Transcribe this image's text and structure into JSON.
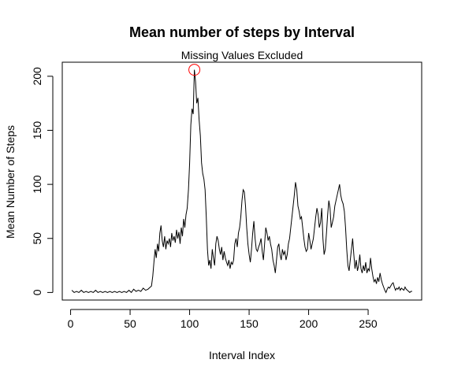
{
  "chart_data": {
    "type": "line",
    "title": "Mean number of steps by Interval",
    "subtitle": "Missing Values Excluded",
    "xlabel": "Interval Index",
    "ylabel": "Mean Number of Steps",
    "xlim": [
      -7,
      295
    ],
    "ylim": [
      -7,
      213
    ],
    "xticks": [
      0,
      50,
      100,
      150,
      200,
      250
    ],
    "yticks": [
      0,
      50,
      100,
      150,
      200
    ],
    "grid": false,
    "line_color": "#000000",
    "highlight": {
      "x": 104,
      "y": 206,
      "color": "#ff0000"
    },
    "points": [
      [
        1,
        2
      ],
      [
        3,
        0
      ],
      [
        5,
        1
      ],
      [
        7,
        0
      ],
      [
        9,
        2
      ],
      [
        11,
        0
      ],
      [
        13,
        1
      ],
      [
        15,
        0
      ],
      [
        17,
        1
      ],
      [
        19,
        0
      ],
      [
        21,
        2
      ],
      [
        23,
        0
      ],
      [
        25,
        1
      ],
      [
        27,
        0
      ],
      [
        29,
        1
      ],
      [
        31,
        0
      ],
      [
        33,
        1
      ],
      [
        35,
        0
      ],
      [
        37,
        1
      ],
      [
        39,
        0
      ],
      [
        41,
        1
      ],
      [
        43,
        0
      ],
      [
        45,
        1
      ],
      [
        47,
        0
      ],
      [
        49,
        2
      ],
      [
        51,
        0
      ],
      [
        53,
        3
      ],
      [
        55,
        1
      ],
      [
        57,
        2
      ],
      [
        59,
        1
      ],
      [
        61,
        4
      ],
      [
        63,
        2
      ],
      [
        65,
        3
      ],
      [
        67,
        5
      ],
      [
        68,
        6
      ],
      [
        69,
        15
      ],
      [
        70,
        28
      ],
      [
        71,
        40
      ],
      [
        72,
        32
      ],
      [
        73,
        45
      ],
      [
        74,
        38
      ],
      [
        75,
        55
      ],
      [
        76,
        62
      ],
      [
        77,
        48
      ],
      [
        78,
        42
      ],
      [
        79,
        52
      ],
      [
        80,
        40
      ],
      [
        81,
        48
      ],
      [
        82,
        45
      ],
      [
        83,
        50
      ],
      [
        84,
        42
      ],
      [
        85,
        55
      ],
      [
        86,
        48
      ],
      [
        87,
        52
      ],
      [
        88,
        46
      ],
      [
        89,
        58
      ],
      [
        90,
        50
      ],
      [
        91,
        56
      ],
      [
        92,
        45
      ],
      [
        93,
        60
      ],
      [
        94,
        52
      ],
      [
        95,
        68
      ],
      [
        96,
        60
      ],
      [
        97,
        72
      ],
      [
        98,
        78
      ],
      [
        99,
        95
      ],
      [
        100,
        120
      ],
      [
        101,
        155
      ],
      [
        102,
        170
      ],
      [
        103,
        165
      ],
      [
        104,
        206
      ],
      [
        105,
        195
      ],
      [
        106,
        175
      ],
      [
        107,
        180
      ],
      [
        108,
        160
      ],
      [
        109,
        145
      ],
      [
        110,
        120
      ],
      [
        111,
        110
      ],
      [
        112,
        105
      ],
      [
        113,
        95
      ],
      [
        114,
        70
      ],
      [
        115,
        40
      ],
      [
        116,
        25
      ],
      [
        117,
        30
      ],
      [
        118,
        22
      ],
      [
        119,
        40
      ],
      [
        120,
        32
      ],
      [
        121,
        25
      ],
      [
        122,
        45
      ],
      [
        123,
        52
      ],
      [
        124,
        48
      ],
      [
        125,
        40
      ],
      [
        126,
        35
      ],
      [
        127,
        42
      ],
      [
        128,
        30
      ],
      [
        129,
        38
      ],
      [
        130,
        32
      ],
      [
        131,
        28
      ],
      [
        132,
        25
      ],
      [
        133,
        30
      ],
      [
        134,
        22
      ],
      [
        135,
        28
      ],
      [
        136,
        26
      ],
      [
        137,
        30
      ],
      [
        138,
        45
      ],
      [
        139,
        50
      ],
      [
        140,
        42
      ],
      [
        141,
        55
      ],
      [
        142,
        60
      ],
      [
        143,
        70
      ],
      [
        144,
        85
      ],
      [
        145,
        95
      ],
      [
        146,
        93
      ],
      [
        147,
        80
      ],
      [
        148,
        60
      ],
      [
        149,
        45
      ],
      [
        150,
        35
      ],
      [
        151,
        28
      ],
      [
        152,
        40
      ],
      [
        153,
        55
      ],
      [
        154,
        66
      ],
      [
        155,
        50
      ],
      [
        156,
        40
      ],
      [
        157,
        38
      ],
      [
        158,
        42
      ],
      [
        159,
        45
      ],
      [
        160,
        50
      ],
      [
        161,
        38
      ],
      [
        162,
        30
      ],
      [
        163,
        45
      ],
      [
        164,
        60
      ],
      [
        165,
        55
      ],
      [
        166,
        48
      ],
      [
        167,
        52
      ],
      [
        168,
        45
      ],
      [
        169,
        40
      ],
      [
        170,
        30
      ],
      [
        171,
        25
      ],
      [
        172,
        18
      ],
      [
        173,
        30
      ],
      [
        174,
        42
      ],
      [
        175,
        45
      ],
      [
        176,
        35
      ],
      [
        177,
        30
      ],
      [
        178,
        40
      ],
      [
        179,
        35
      ],
      [
        180,
        38
      ],
      [
        181,
        30
      ],
      [
        182,
        35
      ],
      [
        183,
        45
      ],
      [
        184,
        50
      ],
      [
        185,
        60
      ],
      [
        186,
        70
      ],
      [
        187,
        80
      ],
      [
        188,
        90
      ],
      [
        189,
        102
      ],
      [
        190,
        95
      ],
      [
        191,
        80
      ],
      [
        192,
        75
      ],
      [
        193,
        68
      ],
      [
        194,
        70
      ],
      [
        195,
        60
      ],
      [
        196,
        50
      ],
      [
        197,
        42
      ],
      [
        198,
        38
      ],
      [
        199,
        40
      ],
      [
        200,
        55
      ],
      [
        201,
        48
      ],
      [
        202,
        40
      ],
      [
        203,
        45
      ],
      [
        204,
        50
      ],
      [
        205,
        60
      ],
      [
        206,
        70
      ],
      [
        207,
        78
      ],
      [
        208,
        72
      ],
      [
        209,
        60
      ],
      [
        210,
        65
      ],
      [
        211,
        78
      ],
      [
        212,
        50
      ],
      [
        213,
        35
      ],
      [
        214,
        40
      ],
      [
        215,
        55
      ],
      [
        216,
        72
      ],
      [
        217,
        85
      ],
      [
        218,
        78
      ],
      [
        219,
        60
      ],
      [
        220,
        65
      ],
      [
        221,
        70
      ],
      [
        222,
        80
      ],
      [
        223,
        85
      ],
      [
        224,
        90
      ],
      [
        225,
        95
      ],
      [
        226,
        100
      ],
      [
        227,
        90
      ],
      [
        228,
        85
      ],
      [
        229,
        82
      ],
      [
        230,
        75
      ],
      [
        231,
        60
      ],
      [
        232,
        40
      ],
      [
        233,
        25
      ],
      [
        234,
        20
      ],
      [
        235,
        30
      ],
      [
        236,
        40
      ],
      [
        237,
        50
      ],
      [
        238,
        35
      ],
      [
        239,
        22
      ],
      [
        240,
        30
      ],
      [
        241,
        20
      ],
      [
        242,
        25
      ],
      [
        243,
        35
      ],
      [
        244,
        22
      ],
      [
        245,
        18
      ],
      [
        246,
        25
      ],
      [
        247,
        20
      ],
      [
        248,
        28
      ],
      [
        249,
        18
      ],
      [
        250,
        22
      ],
      [
        251,
        20
      ],
      [
        252,
        32
      ],
      [
        253,
        22
      ],
      [
        254,
        15
      ],
      [
        255,
        10
      ],
      [
        256,
        12
      ],
      [
        257,
        8
      ],
      [
        258,
        14
      ],
      [
        259,
        10
      ],
      [
        260,
        18
      ],
      [
        261,
        12
      ],
      [
        262,
        8
      ],
      [
        263,
        5
      ],
      [
        264,
        2
      ],
      [
        265,
        0
      ],
      [
        266,
        3
      ],
      [
        267,
        5
      ],
      [
        268,
        4
      ],
      [
        269,
        6
      ],
      [
        270,
        8
      ],
      [
        271,
        9
      ],
      [
        272,
        5
      ],
      [
        273,
        2
      ],
      [
        274,
        4
      ],
      [
        275,
        3
      ],
      [
        276,
        5
      ],
      [
        277,
        2
      ],
      [
        278,
        4
      ],
      [
        279,
        3
      ],
      [
        280,
        2
      ],
      [
        281,
        5
      ],
      [
        282,
        3
      ],
      [
        283,
        2
      ],
      [
        284,
        1
      ],
      [
        285,
        0
      ],
      [
        286,
        1
      ],
      [
        287,
        1
      ]
    ]
  }
}
